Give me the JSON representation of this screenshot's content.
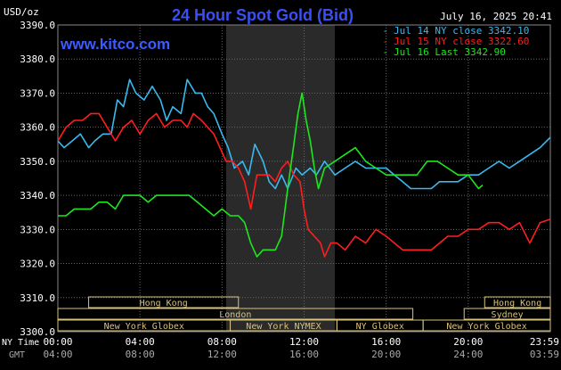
{
  "header": {
    "title": "24 Hour Spot Gold (Bid)",
    "unit_label": "USD/oz",
    "watermark": "www.kitco.com",
    "timestamp": "July 16, 2025 20:41"
  },
  "colors": {
    "background": "#000000",
    "grid": "#666666",
    "title": "#3a4ff5",
    "watermark": "#3c5cff",
    "jul14": "#3ab8f0",
    "jul15": "#ff1e1e",
    "jul16": "#1ee61e",
    "session_panel": "#d8c27a",
    "shade": "#2a2a2a"
  },
  "chart_data": {
    "type": "line",
    "ylim": [
      3300,
      3390
    ],
    "y_ticks": [
      "3390.0",
      "3380.0",
      "3370.0",
      "3360.0",
      "3350.0",
      "3340.0",
      "3330.0",
      "3320.0",
      "3310.0",
      "3300.0"
    ],
    "y_tick_values": [
      3390,
      3380,
      3370,
      3360,
      3350,
      3340,
      3330,
      3320,
      3310,
      3300
    ],
    "xlim": [
      0,
      24
    ],
    "x_ticks": [
      {
        "hour": 0,
        "ny": "00:00",
        "gmt": "04:00"
      },
      {
        "hour": 4,
        "ny": "04:00",
        "gmt": "08:00"
      },
      {
        "hour": 8,
        "ny": "08:00",
        "gmt": "12:00"
      },
      {
        "hour": 12,
        "ny": "12:00",
        "gmt": "16:00"
      },
      {
        "hour": 16,
        "ny": "16:00",
        "gmt": "20:00"
      },
      {
        "hour": 20,
        "ny": "20:00",
        "gmt": "24:00"
      },
      {
        "hour": 24,
        "ny": "23:59",
        "gmt": "03:59"
      }
    ],
    "x_axis_labels": {
      "ny": "NY Time",
      "gmt": "GMT"
    },
    "shaded_range_hours": [
      8.2,
      13.5
    ],
    "legend_placement": "top-right",
    "series": [
      {
        "name": "Jul 14 NY close 3342.10",
        "color": "#3ab8f0",
        "points": [
          [
            0,
            3356
          ],
          [
            0.3,
            3354
          ],
          [
            0.7,
            3356
          ],
          [
            1.1,
            3358
          ],
          [
            1.5,
            3354
          ],
          [
            1.8,
            3356
          ],
          [
            2.2,
            3358
          ],
          [
            2.6,
            3358
          ],
          [
            2.9,
            3368
          ],
          [
            3.2,
            3366
          ],
          [
            3.5,
            3374
          ],
          [
            3.8,
            3370
          ],
          [
            4.2,
            3368
          ],
          [
            4.6,
            3372
          ],
          [
            5.0,
            3368
          ],
          [
            5.3,
            3362
          ],
          [
            5.6,
            3366
          ],
          [
            6.0,
            3364
          ],
          [
            6.3,
            3374
          ],
          [
            6.7,
            3370
          ],
          [
            7.0,
            3370
          ],
          [
            7.3,
            3366
          ],
          [
            7.6,
            3364
          ],
          [
            8.0,
            3358
          ],
          [
            8.3,
            3354
          ],
          [
            8.6,
            3348
          ],
          [
            9.0,
            3350
          ],
          [
            9.3,
            3346
          ],
          [
            9.6,
            3355
          ],
          [
            10.0,
            3350
          ],
          [
            10.3,
            3344
          ],
          [
            10.6,
            3342
          ],
          [
            10.9,
            3346
          ],
          [
            11.2,
            3342
          ],
          [
            11.6,
            3348
          ],
          [
            11.9,
            3346
          ],
          [
            12.3,
            3348
          ],
          [
            12.6,
            3346
          ],
          [
            13.0,
            3350
          ],
          [
            13.5,
            3346
          ],
          [
            14.0,
            3348
          ],
          [
            14.5,
            3350
          ],
          [
            15.0,
            3348
          ],
          [
            15.5,
            3348
          ],
          [
            16.0,
            3348
          ],
          [
            16.4,
            3346
          ],
          [
            16.8,
            3344
          ],
          [
            17.2,
            3342
          ],
          [
            17.7,
            3342
          ],
          [
            18.2,
            3342
          ],
          [
            18.6,
            3344
          ],
          [
            19.0,
            3344
          ],
          [
            19.5,
            3344
          ],
          [
            20.0,
            3346
          ],
          [
            20.5,
            3346
          ],
          [
            21.0,
            3348
          ],
          [
            21.5,
            3350
          ],
          [
            22.0,
            3348
          ],
          [
            22.5,
            3350
          ],
          [
            23.0,
            3352
          ],
          [
            23.5,
            3354
          ],
          [
            24.0,
            3357
          ]
        ]
      },
      {
        "name": "Jul 15 NY close 3322.60",
        "color": "#ff1e1e",
        "points": [
          [
            0,
            3356
          ],
          [
            0.4,
            3360
          ],
          [
            0.8,
            3362
          ],
          [
            1.2,
            3362
          ],
          [
            1.6,
            3364
          ],
          [
            2.0,
            3364
          ],
          [
            2.4,
            3360
          ],
          [
            2.8,
            3356
          ],
          [
            3.2,
            3360
          ],
          [
            3.6,
            3362
          ],
          [
            4.0,
            3358
          ],
          [
            4.4,
            3362
          ],
          [
            4.8,
            3364
          ],
          [
            5.2,
            3360
          ],
          [
            5.6,
            3362
          ],
          [
            6.0,
            3362
          ],
          [
            6.3,
            3360
          ],
          [
            6.6,
            3364
          ],
          [
            7.0,
            3362
          ],
          [
            7.3,
            3360
          ],
          [
            7.6,
            3358
          ],
          [
            7.9,
            3354
          ],
          [
            8.2,
            3350
          ],
          [
            8.5,
            3350
          ],
          [
            8.8,
            3348
          ],
          [
            9.1,
            3344
          ],
          [
            9.4,
            3336
          ],
          [
            9.7,
            3346
          ],
          [
            10.0,
            3346
          ],
          [
            10.3,
            3346
          ],
          [
            10.6,
            3344
          ],
          [
            10.9,
            3348
          ],
          [
            11.2,
            3350
          ],
          [
            11.5,
            3346
          ],
          [
            11.8,
            3344
          ],
          [
            12.0,
            3336
          ],
          [
            12.2,
            3330
          ],
          [
            12.5,
            3328
          ],
          [
            12.8,
            3326
          ],
          [
            13.0,
            3322
          ],
          [
            13.3,
            3326
          ],
          [
            13.6,
            3326
          ],
          [
            14.0,
            3324
          ],
          [
            14.5,
            3328
          ],
          [
            15.0,
            3326
          ],
          [
            15.5,
            3330
          ],
          [
            16.0,
            3328
          ],
          [
            16.4,
            3326
          ],
          [
            16.8,
            3324
          ],
          [
            17.2,
            3324
          ],
          [
            17.7,
            3324
          ],
          [
            18.2,
            3324
          ],
          [
            18.6,
            3326
          ],
          [
            19.0,
            3328
          ],
          [
            19.5,
            3328
          ],
          [
            20.0,
            3330
          ],
          [
            20.5,
            3330
          ],
          [
            21.0,
            3332
          ],
          [
            21.5,
            3332
          ],
          [
            22.0,
            3330
          ],
          [
            22.5,
            3332
          ],
          [
            23.0,
            3326
          ],
          [
            23.5,
            3332
          ],
          [
            24.0,
            3333
          ]
        ]
      },
      {
        "name": "Jul 16 Last 3342.90",
        "color": "#1ee61e",
        "points": [
          [
            0,
            3334
          ],
          [
            0.4,
            3334
          ],
          [
            0.8,
            3336
          ],
          [
            1.2,
            3336
          ],
          [
            1.6,
            3336
          ],
          [
            2.0,
            3338
          ],
          [
            2.4,
            3338
          ],
          [
            2.8,
            3336
          ],
          [
            3.2,
            3340
          ],
          [
            3.6,
            3340
          ],
          [
            4.0,
            3340
          ],
          [
            4.4,
            3338
          ],
          [
            4.8,
            3340
          ],
          [
            5.2,
            3340
          ],
          [
            5.6,
            3340
          ],
          [
            6.0,
            3340
          ],
          [
            6.4,
            3340
          ],
          [
            6.8,
            3338
          ],
          [
            7.2,
            3336
          ],
          [
            7.6,
            3334
          ],
          [
            8.0,
            3336
          ],
          [
            8.4,
            3334
          ],
          [
            8.8,
            3334
          ],
          [
            9.1,
            3332
          ],
          [
            9.4,
            3326
          ],
          [
            9.7,
            3322
          ],
          [
            10.0,
            3324
          ],
          [
            10.3,
            3324
          ],
          [
            10.6,
            3324
          ],
          [
            10.9,
            3328
          ],
          [
            11.2,
            3342
          ],
          [
            11.5,
            3355
          ],
          [
            11.7,
            3364
          ],
          [
            11.9,
            3370
          ],
          [
            12.1,
            3362
          ],
          [
            12.3,
            3356
          ],
          [
            12.5,
            3348
          ],
          [
            12.7,
            3342
          ],
          [
            13.0,
            3348
          ],
          [
            13.5,
            3350
          ],
          [
            14.0,
            3352
          ],
          [
            14.5,
            3354
          ],
          [
            15.0,
            3350
          ],
          [
            15.5,
            3348
          ],
          [
            16.0,
            3346
          ],
          [
            16.5,
            3346
          ],
          [
            17.0,
            3346
          ],
          [
            17.5,
            3346
          ],
          [
            18.0,
            3350
          ],
          [
            18.5,
            3350
          ],
          [
            19.0,
            3348
          ],
          [
            19.5,
            3346
          ],
          [
            20.0,
            3346
          ],
          [
            20.5,
            3342
          ],
          [
            20.7,
            3343
          ]
        ]
      }
    ]
  },
  "sessions": [
    {
      "label": "Hong Kong",
      "start": 1.5,
      "end": 8.8,
      "row": 0
    },
    {
      "label": "London",
      "start": 0,
      "end": 17.3,
      "row": 1
    },
    {
      "label": "New York Globex",
      "start": 0,
      "end": 8.4,
      "row": 2
    },
    {
      "label": "New York NYMEX",
      "start": 8.4,
      "end": 13.6,
      "row": 2
    },
    {
      "label": "NY Globex",
      "start": 13.6,
      "end": 17.8,
      "row": 2
    },
    {
      "label": "Hong Kong",
      "start": 20.8,
      "end": 24,
      "row": 0
    },
    {
      "label": "Sydney",
      "start": 19.8,
      "end": 24,
      "row": 1
    },
    {
      "label": "New York Globex",
      "start": 17.8,
      "end": 24,
      "row": 2
    }
  ]
}
